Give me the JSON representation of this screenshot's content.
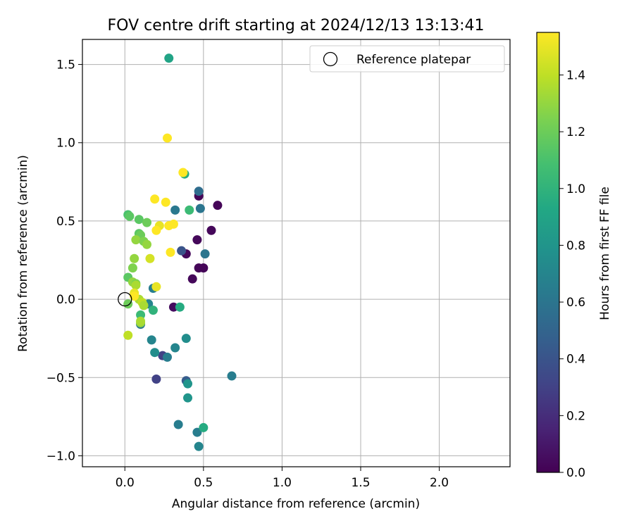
{
  "chart_data": {
    "type": "scatter",
    "title": "FOV centre drift starting at 2024/12/13 13:13:41",
    "xlabel": "Angular distance from reference (arcmin)",
    "ylabel": "Rotation from reference (arcmin)",
    "xlim": [
      -0.27,
      2.45
    ],
    "ylim": [
      -1.07,
      1.66
    ],
    "xticks": [
      0.0,
      0.5,
      1.0,
      1.5,
      2.0
    ],
    "xtick_labels": [
      "0.0",
      "0.5",
      "1.0",
      "1.5",
      "2.0"
    ],
    "yticks": [
      -1.0,
      -0.5,
      0.0,
      0.5,
      1.0,
      1.5
    ],
    "ytick_labels": [
      "−1.0",
      "−0.5",
      "0.0",
      "0.5",
      "1.0",
      "1.5"
    ],
    "grid": true,
    "legend": {
      "position": "top-right",
      "entries": [
        "Reference platepar"
      ]
    },
    "reference_point": {
      "x": 0.0,
      "y": 0.0,
      "label": "Reference platepar"
    },
    "colorbar": {
      "label": "Hours from first FF file",
      "min": 0.0,
      "max": 1.55,
      "colormap": "viridis",
      "ticks": [
        0.0,
        0.2,
        0.4,
        0.6,
        0.8,
        1.0,
        1.2,
        1.4
      ],
      "tick_labels": [
        "0.0",
        "0.2",
        "0.4",
        "0.6",
        "0.8",
        "1.0",
        "1.2",
        "1.4"
      ]
    },
    "points": [
      {
        "x": 0.47,
        "y": 0.66,
        "c": 0.02
      },
      {
        "x": 0.59,
        "y": 0.6,
        "c": 0.02
      },
      {
        "x": 0.55,
        "y": 0.44,
        "c": 0.03
      },
      {
        "x": 0.46,
        "y": 0.38,
        "c": 0.03
      },
      {
        "x": 0.39,
        "y": 0.29,
        "c": 0.03
      },
      {
        "x": 0.47,
        "y": 0.2,
        "c": 0.02
      },
      {
        "x": 0.5,
        "y": 0.2,
        "c": 0.02
      },
      {
        "x": 0.43,
        "y": 0.13,
        "c": 0.03
      },
      {
        "x": 0.31,
        "y": -0.05,
        "c": 0.05
      },
      {
        "x": 0.36,
        "y": 0.31,
        "c": 0.4
      },
      {
        "x": 0.24,
        "y": -0.36,
        "c": 0.3
      },
      {
        "x": 0.2,
        "y": -0.51,
        "c": 0.3
      },
      {
        "x": 0.39,
        "y": -0.52,
        "c": 0.45
      },
      {
        "x": 0.47,
        "y": 0.69,
        "c": 0.55
      },
      {
        "x": 0.48,
        "y": 0.58,
        "c": 0.6
      },
      {
        "x": 0.32,
        "y": 0.57,
        "c": 0.62
      },
      {
        "x": 0.51,
        "y": 0.29,
        "c": 0.6
      },
      {
        "x": 0.68,
        "y": -0.49,
        "c": 0.65
      },
      {
        "x": 0.34,
        "y": -0.8,
        "c": 0.65
      },
      {
        "x": 0.46,
        "y": -0.85,
        "c": 0.65
      },
      {
        "x": 0.47,
        "y": -0.94,
        "c": 0.7
      },
      {
        "x": 0.27,
        "y": -0.37,
        "c": 0.65
      },
      {
        "x": 0.32,
        "y": -0.31,
        "c": 0.7
      },
      {
        "x": 0.39,
        "y": -0.25,
        "c": 0.75
      },
      {
        "x": 0.17,
        "y": -0.26,
        "c": 0.7
      },
      {
        "x": 0.19,
        "y": -0.34,
        "c": 0.75
      },
      {
        "x": 0.4,
        "y": -0.54,
        "c": 0.8
      },
      {
        "x": 0.4,
        "y": -0.63,
        "c": 0.8
      },
      {
        "x": 0.1,
        "y": -0.16,
        "c": 0.62
      },
      {
        "x": 0.15,
        "y": -0.03,
        "c": 0.7
      },
      {
        "x": 0.18,
        "y": 0.07,
        "c": 0.65
      },
      {
        "x": 0.28,
        "y": 1.54,
        "c": 0.9
      },
      {
        "x": 0.38,
        "y": 0.8,
        "c": 0.95
      },
      {
        "x": 0.41,
        "y": 0.57,
        "c": 1.05
      },
      {
        "x": 0.35,
        "y": -0.05,
        "c": 0.95
      },
      {
        "x": 0.5,
        "y": -0.82,
        "c": 0.95
      },
      {
        "x": 0.18,
        "y": -0.07,
        "c": 1.0
      },
      {
        "x": 0.1,
        "y": -0.1,
        "c": 1.05
      },
      {
        "x": 0.02,
        "y": 0.54,
        "c": 1.1
      },
      {
        "x": 0.03,
        "y": 0.53,
        "c": 1.15
      },
      {
        "x": 0.09,
        "y": 0.51,
        "c": 1.15
      },
      {
        "x": 0.14,
        "y": 0.49,
        "c": 1.2
      },
      {
        "x": 0.09,
        "y": 0.42,
        "c": 1.15
      },
      {
        "x": 0.1,
        "y": 0.41,
        "c": 1.2
      },
      {
        "x": 0.02,
        "y": 0.14,
        "c": 1.15
      },
      {
        "x": 0.05,
        "y": 0.2,
        "c": 1.25
      },
      {
        "x": 0.06,
        "y": 0.26,
        "c": 1.3
      },
      {
        "x": 0.02,
        "y": -0.03,
        "c": 1.2
      },
      {
        "x": 0.07,
        "y": 0.38,
        "c": 1.3
      },
      {
        "x": 0.12,
        "y": 0.37,
        "c": 1.25
      },
      {
        "x": 0.14,
        "y": 0.35,
        "c": 1.3
      },
      {
        "x": 0.05,
        "y": 0.11,
        "c": 1.3
      },
      {
        "x": 0.07,
        "y": 0.1,
        "c": 1.25
      },
      {
        "x": 0.07,
        "y": 0.09,
        "c": 1.35
      },
      {
        "x": 0.09,
        "y": 0.0,
        "c": 1.35
      },
      {
        "x": 0.11,
        "y": -0.02,
        "c": 1.4
      },
      {
        "x": 0.12,
        "y": -0.04,
        "c": 1.35
      },
      {
        "x": 0.1,
        "y": -0.15,
        "c": 1.3
      },
      {
        "x": 0.1,
        "y": -0.14,
        "c": 1.35
      },
      {
        "x": 0.02,
        "y": -0.23,
        "c": 1.4
      },
      {
        "x": 0.16,
        "y": 0.26,
        "c": 1.45
      },
      {
        "x": 0.06,
        "y": 0.04,
        "c": 1.5
      },
      {
        "x": 0.06,
        "y": 0.02,
        "c": 1.55
      },
      {
        "x": 0.2,
        "y": 0.08,
        "c": 1.5
      },
      {
        "x": 0.27,
        "y": 1.03,
        "c": 1.55
      },
      {
        "x": 0.37,
        "y": 0.81,
        "c": 1.55
      },
      {
        "x": 0.19,
        "y": 0.64,
        "c": 1.55
      },
      {
        "x": 0.26,
        "y": 0.62,
        "c": 1.55
      },
      {
        "x": 0.22,
        "y": 0.47,
        "c": 1.5
      },
      {
        "x": 0.2,
        "y": 0.44,
        "c": 1.55
      },
      {
        "x": 0.28,
        "y": 0.47,
        "c": 1.55
      },
      {
        "x": 0.31,
        "y": 0.48,
        "c": 1.55
      },
      {
        "x": 0.29,
        "y": 0.3,
        "c": 1.55
      }
    ]
  }
}
